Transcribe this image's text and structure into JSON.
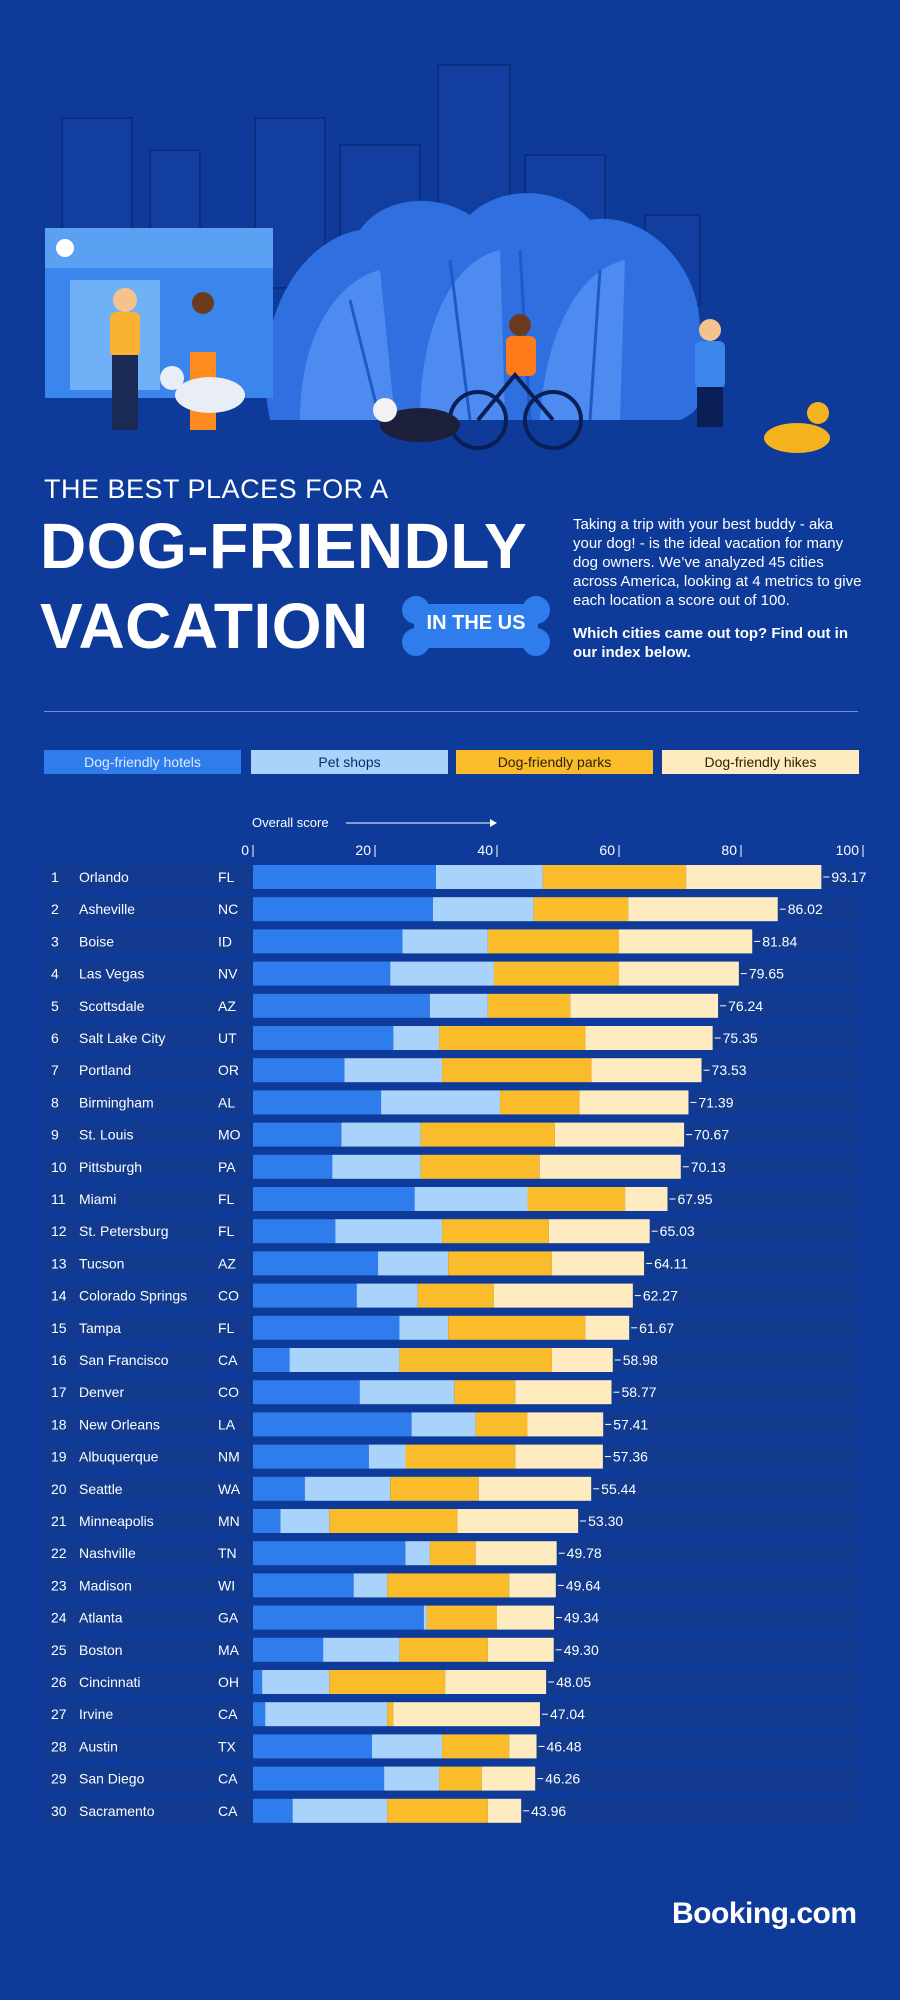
{
  "header": {
    "title_small": "THE BEST PLACES FOR A",
    "title_line1": "DOG-FRIENDLY",
    "title_line2": "VACATION",
    "badge": "IN THE US",
    "intro": "Taking a trip with your best buddy - aka your dog! - is the ideal vacation for many dog owners. We’ve analyzed 45 cities across America, looking at 4 metrics to give each location a score out of 100.",
    "intro_bold": "Which cities came out top? Find out in our index below."
  },
  "colors": {
    "background": "#0e3a9a",
    "hotels": "#2f7cec",
    "pet_shops": "#a9d3fb",
    "parks": "#fbbc2c",
    "hikes": "#feebc0",
    "row": "#123b8f"
  },
  "brand": {
    "logo": "Booking.com"
  },
  "chart_data": {
    "type": "bar",
    "orientation": "horizontal",
    "stacked": true,
    "xlabel": "Overall score",
    "xlim": [
      0,
      100
    ],
    "xticks": [
      "0",
      "20",
      "40",
      "60",
      "80",
      "100"
    ],
    "legend": [
      "Dog-friendly hotels",
      "Pet shops",
      "Dog-friendly parks",
      "Dog-friendly hikes"
    ],
    "legend_placement": "top",
    "rows": [
      {
        "rank": "1",
        "city": "Orlando",
        "state": "FL",
        "segments": [
          30.0,
          17.5,
          23.5,
          22.17
        ],
        "total": "93.17"
      },
      {
        "rank": "2",
        "city": "Asheville",
        "state": "NC",
        "segments": [
          29.5,
          16.5,
          15.5,
          24.52
        ],
        "total": "86.02"
      },
      {
        "rank": "3",
        "city": "Boise",
        "state": "ID",
        "segments": [
          24.5,
          14.0,
          21.5,
          21.84
        ],
        "total": "81.84"
      },
      {
        "rank": "4",
        "city": "Las Vegas",
        "state": "NV",
        "segments": [
          22.5,
          17.0,
          20.5,
          19.65
        ],
        "total": "79.65"
      },
      {
        "rank": "5",
        "city": "Scottsdale",
        "state": "AZ",
        "segments": [
          29.0,
          9.5,
          13.5,
          24.24
        ],
        "total": "76.24"
      },
      {
        "rank": "6",
        "city": "Salt Lake City",
        "state": "UT",
        "segments": [
          23.0,
          7.5,
          24.0,
          20.85
        ],
        "total": "75.35"
      },
      {
        "rank": "7",
        "city": "Portland",
        "state": "OR",
        "segments": [
          15.0,
          16.0,
          24.5,
          18.03
        ],
        "total": "73.53"
      },
      {
        "rank": "8",
        "city": "Birmingham",
        "state": "AL",
        "segments": [
          21.0,
          19.5,
          13.0,
          17.89
        ],
        "total": "71.39"
      },
      {
        "rank": "9",
        "city": "St. Louis",
        "state": "MO",
        "segments": [
          14.5,
          13.0,
          22.0,
          21.17
        ],
        "total": "70.67"
      },
      {
        "rank": "10",
        "city": "Pittsburgh",
        "state": "PA",
        "segments": [
          13.0,
          14.5,
          19.5,
          23.13
        ],
        "total": "70.13"
      },
      {
        "rank": "11",
        "city": "Miami",
        "state": "FL",
        "segments": [
          26.5,
          18.5,
          16.0,
          6.95
        ],
        "total": "67.95"
      },
      {
        "rank": "12",
        "city": "St. Petersburg",
        "state": "FL",
        "segments": [
          13.5,
          17.5,
          17.5,
          16.53
        ],
        "total": "65.03"
      },
      {
        "rank": "13",
        "city": "Tucson",
        "state": "AZ",
        "segments": [
          20.5,
          11.5,
          17.0,
          15.11
        ],
        "total": "64.11"
      },
      {
        "rank": "14",
        "city": "Colorado Springs",
        "state": "CO",
        "segments": [
          17.0,
          10.0,
          12.5,
          22.77
        ],
        "total": "62.27"
      },
      {
        "rank": "15",
        "city": "Tampa",
        "state": "FL",
        "segments": [
          24.0,
          8.0,
          22.5,
          7.17
        ],
        "total": "61.67"
      },
      {
        "rank": "16",
        "city": "San Francisco",
        "state": "CA",
        "segments": [
          6.0,
          18.0,
          25.0,
          9.98
        ],
        "total": "58.98"
      },
      {
        "rank": "17",
        "city": "Denver",
        "state": "CO",
        "segments": [
          17.5,
          15.5,
          10.0,
          15.77
        ],
        "total": "58.77"
      },
      {
        "rank": "18",
        "city": "New Orleans",
        "state": "LA",
        "segments": [
          26.0,
          10.5,
          8.5,
          12.41
        ],
        "total": "57.41"
      },
      {
        "rank": "19",
        "city": "Albuquerque",
        "state": "NM",
        "segments": [
          19.0,
          6.0,
          18.0,
          14.36
        ],
        "total": "57.36"
      },
      {
        "rank": "20",
        "city": "Seattle",
        "state": "WA",
        "segments": [
          8.5,
          14.0,
          14.5,
          18.44
        ],
        "total": "55.44"
      },
      {
        "rank": "21",
        "city": "Minneapolis",
        "state": "MN",
        "segments": [
          4.5,
          8.0,
          21.0,
          19.8
        ],
        "total": "53.30"
      },
      {
        "rank": "22",
        "city": "Nashville",
        "state": "TN",
        "segments": [
          25.0,
          4.0,
          7.5,
          13.28
        ],
        "total": "49.78"
      },
      {
        "rank": "23",
        "city": "Madison",
        "state": "WI",
        "segments": [
          16.5,
          5.5,
          20.0,
          7.64
        ],
        "total": "49.64"
      },
      {
        "rank": "24",
        "city": "Atlanta",
        "state": "GA",
        "segments": [
          28.0,
          0.5,
          11.5,
          9.34
        ],
        "total": "49.34"
      },
      {
        "rank": "25",
        "city": "Boston",
        "state": "MA",
        "segments": [
          11.5,
          12.5,
          14.5,
          10.8
        ],
        "total": "49.30"
      },
      {
        "rank": "26",
        "city": "Cincinnati",
        "state": "OH",
        "segments": [
          1.5,
          11.0,
          19.0,
          16.55
        ],
        "total": "48.05"
      },
      {
        "rank": "27",
        "city": "Irvine",
        "state": "CA",
        "segments": [
          2.0,
          20.0,
          1.0,
          24.04
        ],
        "total": "47.04"
      },
      {
        "rank": "28",
        "city": "Austin",
        "state": "TX",
        "segments": [
          19.5,
          11.5,
          11.0,
          4.48
        ],
        "total": "46.48"
      },
      {
        "rank": "29",
        "city": "San Diego",
        "state": "CA",
        "segments": [
          21.5,
          9.0,
          7.0,
          8.76
        ],
        "total": "46.26"
      },
      {
        "rank": "30",
        "city": "Sacramento",
        "state": "CA",
        "segments": [
          6.5,
          15.5,
          16.5,
          5.46
        ],
        "total": "43.96"
      }
    ]
  }
}
